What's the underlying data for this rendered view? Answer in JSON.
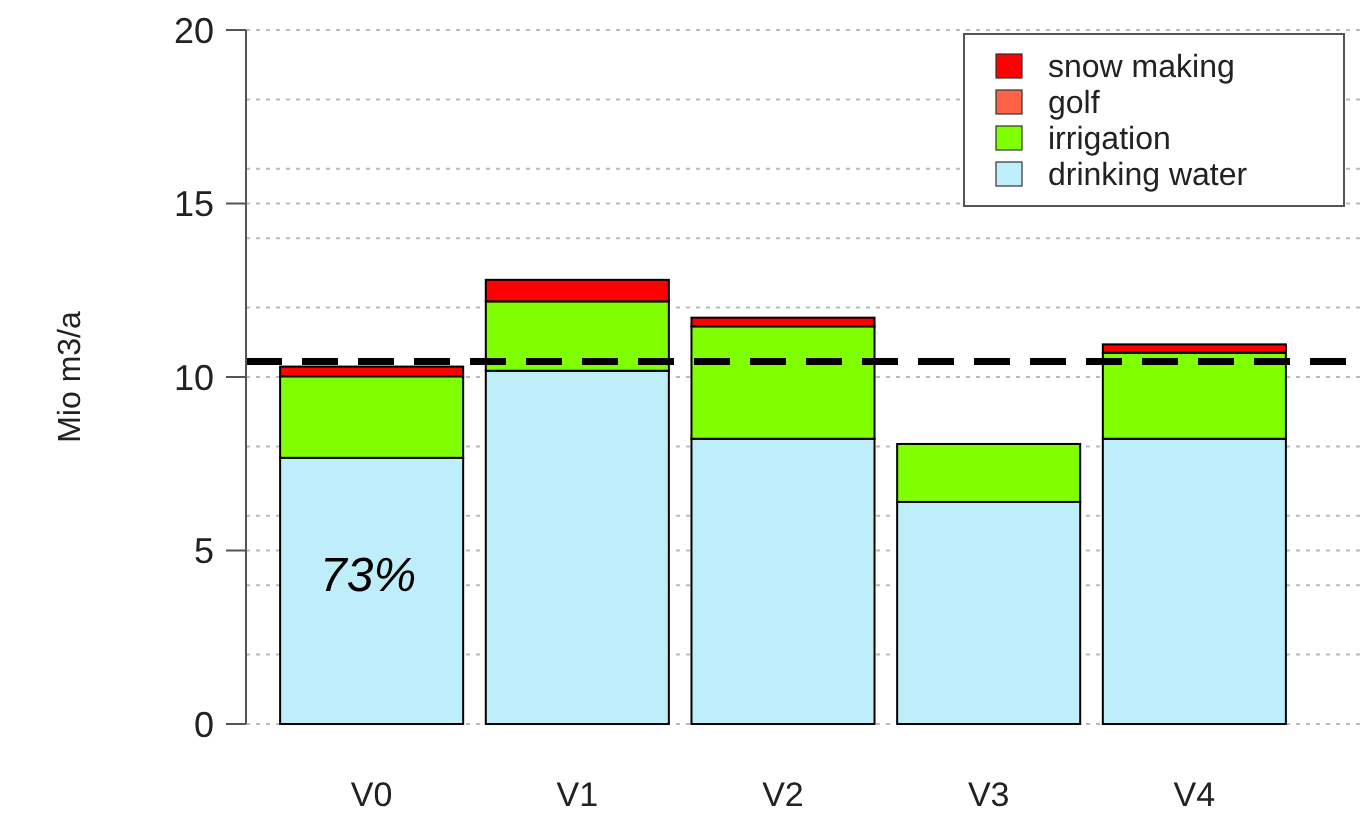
{
  "chart_data": {
    "type": "bar",
    "stacked": true,
    "ylabel": "Mio m3/a",
    "categories": [
      "V0",
      "V1",
      "V2",
      "V3",
      "V4"
    ],
    "series": [
      {
        "name": "drinking water",
        "color": "#bfeefb",
        "values": [
          7.67,
          10.18,
          8.22,
          6.4,
          8.22
        ]
      },
      {
        "name": "irrigation",
        "color": "#80ff00",
        "values": [
          2.35,
          2.0,
          3.24,
          1.67,
          2.48
        ]
      },
      {
        "name": "golf",
        "color": "#ff6347",
        "values": [
          null,
          null,
          null,
          null,
          null
        ]
      },
      {
        "name": "snow making",
        "color": "#ff0000",
        "values": [
          0.28,
          0.62,
          0.25,
          0,
          0.24
        ]
      }
    ],
    "ylim": [
      0,
      20
    ],
    "yticks": [
      0,
      {
        "value": 2,
        "label": null
      },
      {
        "value": 4,
        "label": null
      },
      5,
      {
        "value": 6,
        "label": null
      },
      {
        "value": 8,
        "label": null
      },
      10,
      {
        "value": 12,
        "label": null
      },
      {
        "value": 14,
        "label": null
      },
      15,
      {
        "value": 16,
        "label": null
      },
      {
        "value": 18,
        "label": null
      },
      20
    ],
    "grid": "y",
    "legend": "top right",
    "ref_lines": [
      {
        "axis": "y",
        "value": 10.45,
        "color": "#000000",
        "line_style": "dashed"
      }
    ],
    "annotations": [
      "73%"
    ]
  }
}
